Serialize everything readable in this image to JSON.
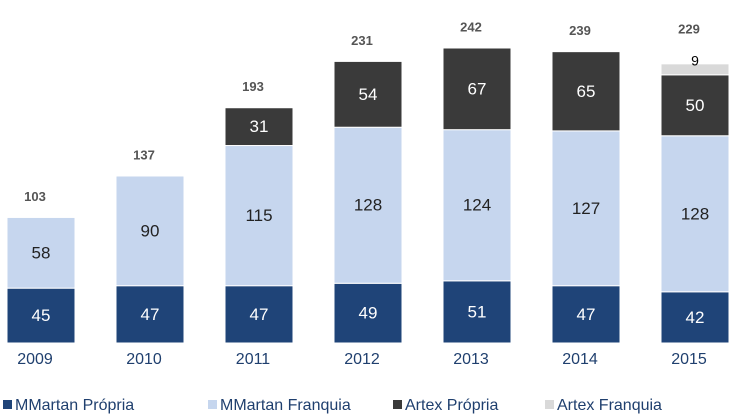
{
  "chart_data": {
    "type": "stacked_bar",
    "categories": [
      "2009",
      "2010",
      "2011",
      "2012",
      "2013",
      "2014",
      "2015"
    ],
    "totals": [
      103,
      137,
      193,
      231,
      242,
      239,
      229
    ],
    "series": [
      {
        "name": "MMartan Própria",
        "color": "#1f4478",
        "values": [
          45,
          47,
          47,
          49,
          51,
          47,
          42
        ]
      },
      {
        "name": "MMartan Franquia",
        "color": "#c6d6ee",
        "values": [
          58,
          90,
          115,
          128,
          124,
          127,
          128
        ]
      },
      {
        "name": "Artex Própria",
        "color": "#3a3a3a",
        "values": [
          null,
          null,
          31,
          54,
          67,
          65,
          50
        ]
      },
      {
        "name": "Artex Franquia",
        "color": "#d9d9d9",
        "values": [
          null,
          null,
          null,
          null,
          null,
          null,
          9
        ]
      }
    ]
  }
}
